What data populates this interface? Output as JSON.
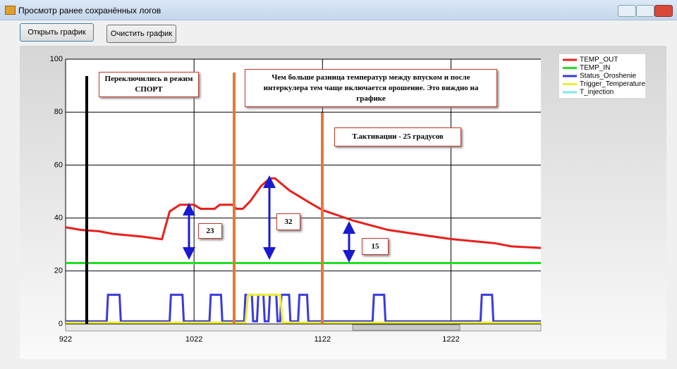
{
  "window": {
    "title": "Просмотр ранее сохранённых логов"
  },
  "buttons": [
    "Открыть график",
    "Очистить график"
  ],
  "annotations": [
    "Переключились в режим СПОРТ",
    "Чем больше разница температур между впуском и после интеркулера тем чаще включается орошение. Это виждно на графике",
    "T.активации - 25 градусов",
    "23",
    "32",
    "15"
  ],
  "chart_data": {
    "type": "line",
    "xlim": [
      922,
      1292
    ],
    "xticks": [
      922,
      1022,
      1122,
      1222
    ],
    "ylim": [
      0,
      100
    ],
    "yticks": [
      0,
      20,
      40,
      60,
      80,
      100
    ],
    "grid": true,
    "series": [
      {
        "name": "TEMP_OUT",
        "color": "#e8201c",
        "x": [
          922,
          934,
          948,
          959,
          981,
          997,
          1003,
          1011,
          1022,
          1027,
          1038,
          1042,
          1052,
          1055,
          1060,
          1066,
          1074,
          1081,
          1085,
          1096,
          1113,
          1122,
          1146,
          1173,
          1201,
          1223,
          1256,
          1269,
          1292
        ],
        "values": [
          36.5,
          35.5,
          35,
          34,
          33,
          32,
          42.5,
          45,
          45,
          43.5,
          43.5,
          45,
          45,
          43.5,
          43.5,
          46.5,
          52,
          55,
          55,
          50.5,
          45.5,
          43,
          39,
          35.5,
          33.5,
          32,
          30.5,
          29.3,
          28.7
        ]
      },
      {
        "name": "TEMP_IN",
        "color": "#22dd22",
        "x": [
          922,
          1292
        ],
        "values": [
          23,
          23
        ]
      },
      {
        "name": "Status_Oroshenie",
        "color": "#3a3adf",
        "x": [
          922,
          954,
          955,
          964,
          965,
          1003,
          1004,
          1013,
          1014,
          1034,
          1035,
          1043,
          1044,
          1061,
          1062,
          1067,
          1068,
          1071,
          1072,
          1076,
          1077,
          1080,
          1081,
          1086,
          1087,
          1089,
          1090,
          1096,
          1097,
          1103,
          1104,
          1110,
          1111,
          1161,
          1162,
          1170,
          1171,
          1245,
          1246,
          1254,
          1255,
          1292
        ],
        "values": [
          1,
          1,
          11,
          11,
          1,
          1,
          11,
          11,
          1,
          1,
          11,
          11,
          1,
          1,
          11,
          11,
          1,
          1,
          11,
          11,
          1,
          1,
          11,
          11,
          1,
          1,
          11,
          11,
          1,
          1,
          11,
          11,
          1,
          1,
          11,
          11,
          1,
          1,
          11,
          11,
          1,
          1
        ]
      },
      {
        "name": "Trigger_Temperature",
        "color": "#eeee30",
        "x": [
          922,
          1062,
          1064,
          1089,
          1091,
          1292
        ],
        "values": [
          0.5,
          0.5,
          11,
          11,
          0.5,
          0.5
        ]
      },
      {
        "name": "T_injection",
        "color": "#80e8f0",
        "x": [],
        "values": []
      }
    ]
  }
}
